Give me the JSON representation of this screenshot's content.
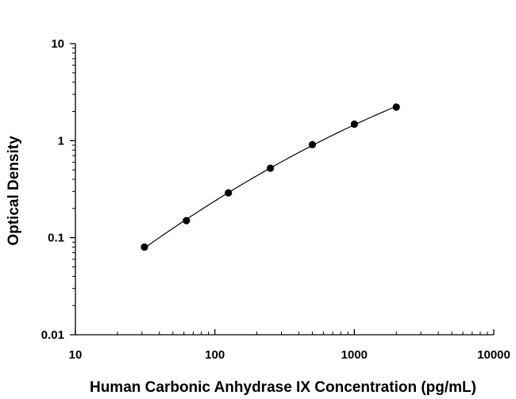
{
  "chart_data": {
    "type": "scatter",
    "title": "",
    "xlabel": "Human Carbonic Anhydrase IX Concentration (pg/mL)",
    "ylabel": "Optical Density",
    "xscale": "log",
    "yscale": "log",
    "xlim": [
      10,
      10000
    ],
    "ylim": [
      0.01,
      10
    ],
    "grid": false,
    "x_ticks": [
      "10",
      "100",
      "1000",
      "10000"
    ],
    "y_ticks": [
      "0.01",
      "0.1",
      "1",
      "10"
    ],
    "series": [
      {
        "x": [
          31.25,
          62.5,
          125,
          250,
          500,
          1000,
          2000
        ],
        "y": [
          0.08,
          0.15,
          0.29,
          0.52,
          0.91,
          1.48,
          2.22
        ]
      }
    ],
    "fit_curve": true,
    "colors": {
      "points": "#000000",
      "line": "#000000",
      "axis": "#000000"
    }
  }
}
